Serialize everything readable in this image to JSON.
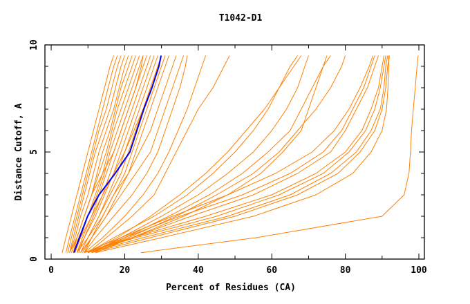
{
  "chart_data": {
    "type": "line",
    "title": "T1042-D1",
    "xlabel": "Percent of Residues (CA)",
    "ylabel": "Distance Cutoff, A",
    "xlim": [
      -1.7,
      101.5
    ],
    "ylim": [
      0,
      10
    ],
    "xticks": [
      0,
      20,
      40,
      60,
      80,
      100
    ],
    "yticks": [
      0,
      5,
      10
    ],
    "grid": false,
    "colors": {
      "models": "#ff8000",
      "highlight": "#0000ff"
    },
    "y_levels": [
      0.3,
      1,
      2,
      3,
      4,
      5,
      6,
      7,
      8,
      9,
      9.5
    ],
    "highlight_series": {
      "x": [
        6.2,
        7.7,
        9.9,
        13,
        17.4,
        21.4,
        23.3,
        25.2,
        27.4,
        29.3,
        29.9
      ]
    },
    "series": [
      {
        "x": [
          3,
          4,
          5.5,
          7,
          8.5,
          10,
          11.5,
          13,
          14.5,
          16,
          17
        ]
      },
      {
        "x": [
          4,
          5,
          6.5,
          8,
          9.5,
          11,
          12.5,
          14,
          15.5,
          17,
          18
        ]
      },
      {
        "x": [
          4.5,
          5.5,
          7,
          8.5,
          10,
          11.5,
          13,
          15,
          16.5,
          18,
          19
        ]
      },
      {
        "x": [
          5,
          6,
          7.5,
          9,
          10.5,
          12,
          14,
          16,
          17.5,
          19,
          20
        ]
      },
      {
        "x": [
          5,
          6.5,
          8,
          10,
          11.5,
          13,
          15,
          17,
          18.5,
          20,
          21
        ]
      },
      {
        "x": [
          5.5,
          7,
          9,
          11,
          12.5,
          14,
          16,
          17.5,
          19,
          21,
          22
        ]
      },
      {
        "x": [
          6,
          7,
          9,
          11,
          13,
          15,
          16.5,
          18,
          20,
          22,
          23
        ]
      },
      {
        "x": [
          6,
          7.5,
          10,
          12,
          14,
          15.5,
          17,
          19,
          21,
          23,
          24
        ]
      },
      {
        "x": [
          6.5,
          8,
          10,
          12.5,
          14.5,
          16,
          18,
          20,
          22,
          24,
          25
        ]
      },
      {
        "x": [
          7,
          8.5,
          11,
          13,
          15,
          17,
          19,
          21,
          23,
          25,
          26
        ]
      },
      {
        "x": [
          7,
          9,
          11.5,
          14,
          16,
          18,
          20,
          22,
          24,
          26,
          27
        ]
      },
      {
        "x": [
          7.5,
          9,
          12,
          14.5,
          17,
          19,
          21,
          23,
          25,
          27,
          28
        ]
      },
      {
        "x": [
          8,
          10,
          13,
          15.5,
          18,
          20,
          22,
          24,
          26,
          28,
          29
        ]
      },
      {
        "x": [
          8,
          10,
          13,
          16,
          19,
          21,
          23,
          25,
          27,
          29,
          30
        ]
      },
      {
        "x": [
          8.5,
          11,
          14,
          17,
          20,
          22,
          24,
          26,
          28,
          30,
          31
        ]
      },
      {
        "x": [
          9,
          11,
          15,
          18,
          21,
          23,
          25,
          27,
          29,
          31,
          32
        ]
      },
      {
        "x": [
          6,
          8,
          11,
          14,
          17,
          20,
          22.5,
          25,
          27,
          29,
          30
        ]
      },
      {
        "x": [
          5,
          7,
          9,
          11,
          14,
          17,
          19,
          21,
          23,
          24.5,
          25
        ]
      },
      {
        "x": [
          7,
          10,
          14,
          17,
          21,
          24,
          27,
          29,
          31,
          33,
          34
        ]
      },
      {
        "x": [
          8,
          11,
          15,
          19,
          23,
          27,
          29,
          31,
          33,
          35,
          36
        ]
      },
      {
        "x": [
          9,
          12,
          17,
          22,
          26,
          29,
          31,
          33,
          35,
          36.5,
          37
        ]
      },
      {
        "x": [
          9,
          14,
          20,
          25,
          29,
          32,
          34.5,
          37,
          39,
          41,
          42
        ]
      },
      {
        "x": [
          10,
          15,
          22,
          28,
          31,
          34,
          37,
          40,
          44,
          47,
          48.5
        ]
      },
      {
        "x": [
          10,
          17,
          28,
          37,
          44,
          50,
          55,
          59,
          62,
          65,
          67
        ]
      },
      {
        "x": [
          10,
          18,
          27,
          35,
          42,
          48,
          53,
          58,
          62,
          66,
          68
        ]
      },
      {
        "x": [
          11,
          19,
          30,
          40,
          48,
          55,
          60,
          64,
          67,
          69,
          70
        ]
      },
      {
        "x": [
          11,
          20,
          32,
          43,
          52,
          59,
          65,
          68,
          71,
          74,
          75
        ]
      },
      {
        "x": [
          10,
          21,
          34,
          45,
          55,
          62,
          67,
          72,
          76,
          79,
          80
        ]
      },
      {
        "x": [
          12,
          22,
          36,
          48,
          57,
          63,
          68,
          70,
          72,
          74,
          76
        ]
      },
      {
        "x": [
          10,
          20,
          35,
          52,
          65,
          74,
          79,
          82,
          85,
          87,
          88
        ]
      },
      {
        "x": [
          11,
          22,
          38,
          55,
          67,
          76,
          80,
          83,
          86,
          88,
          89
        ]
      },
      {
        "x": [
          9,
          19,
          33,
          48,
          61,
          71,
          77,
          81,
          84,
          86.5,
          87.5
        ]
      },
      {
        "x": [
          9,
          23,
          45,
          62,
          74,
          81,
          85.5,
          88,
          89.5,
          90.5,
          91
        ]
      },
      {
        "x": [
          10,
          25,
          48,
          65,
          76,
          83,
          87,
          89.5,
          90.5,
          91,
          91.5
        ]
      },
      {
        "x": [
          11,
          27,
          50,
          67,
          78,
          84,
          88,
          90,
          91,
          91.5,
          92
        ]
      },
      {
        "x": [
          9,
          22,
          42,
          60,
          72,
          80,
          84.5,
          87,
          89,
          90,
          90.5
        ]
      },
      {
        "x": [
          12,
          30,
          55,
          72,
          82,
          87,
          90,
          91.2,
          91.6,
          91.8,
          91.8
        ]
      },
      {
        "x": [
          24.4,
          55.7,
          90,
          96,
          97.3,
          97.7,
          98,
          98.5,
          99,
          99.5,
          99.8
        ]
      }
    ]
  }
}
